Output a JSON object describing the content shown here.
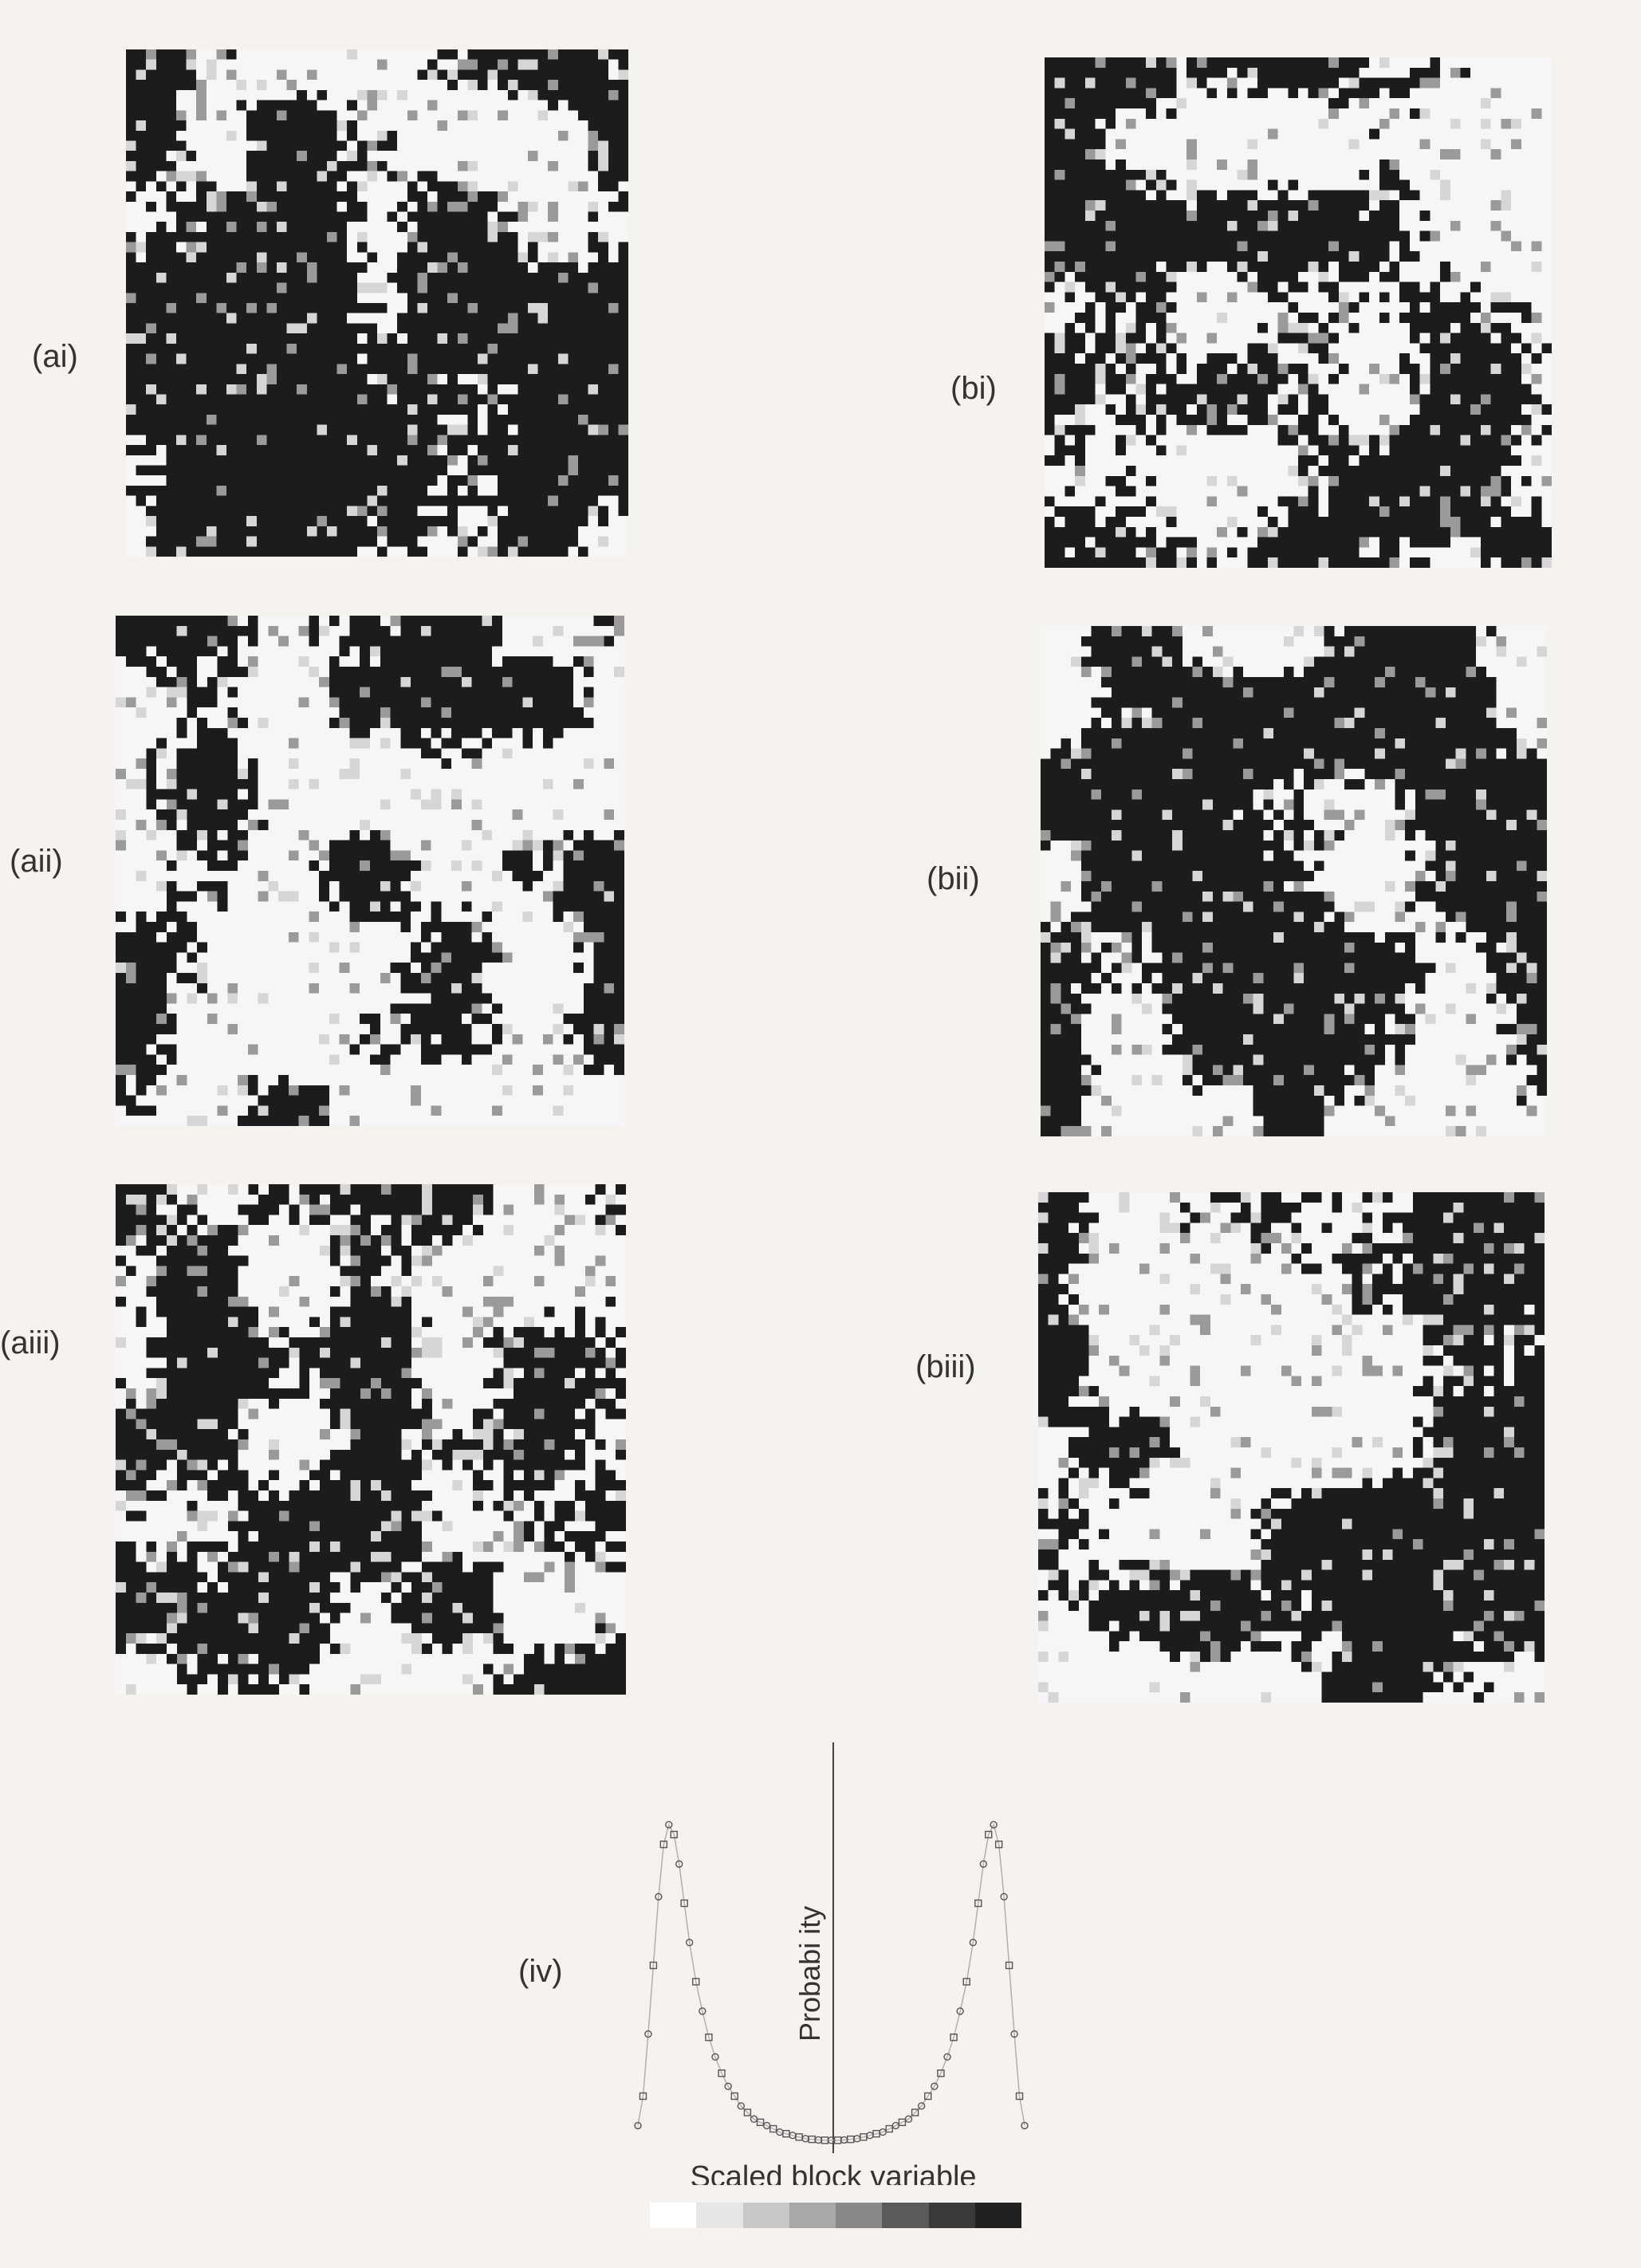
{
  "panels": [
    {
      "id": "ai",
      "label": "(ai)",
      "seed": 11,
      "threshold": 0.47
    },
    {
      "id": "bi",
      "label": "(bi)",
      "seed": 23,
      "threshold": 0.5
    },
    {
      "id": "aii",
      "label": "(aii)",
      "seed": 37,
      "threshold": 0.55
    },
    {
      "id": "bii",
      "label": "(bii)",
      "seed": 41,
      "threshold": 0.52
    },
    {
      "id": "aiii",
      "label": "(aiii)",
      "seed": 53,
      "threshold": 0.54
    },
    {
      "id": "biii",
      "label": "(biii)",
      "seed": 67,
      "threshold": 0.52
    }
  ],
  "chart_data": {
    "type": "scatter",
    "label": "(iv)",
    "xlabel": "Scaled block variable",
    "ylabel": "Probabi ity",
    "xlim": [
      -1.5,
      1.5
    ],
    "ylim": [
      0,
      1.0
    ],
    "series": [
      {
        "x": [
          -1.5,
          -1.46,
          -1.42,
          -1.38,
          -1.34,
          -1.3,
          -1.26,
          -1.22,
          -1.18,
          -1.14,
          -1.1,
          -1.05,
          -1.0,
          -0.95,
          -0.9,
          -0.85,
          -0.8,
          -0.75,
          -0.7,
          -0.65,
          -0.6,
          -0.55,
          -0.5,
          -0.45,
          -0.4,
          -0.35,
          -0.3,
          -0.25,
          -0.2,
          -0.15,
          -0.1,
          -0.05,
          0.0,
          0.05,
          0.1,
          0.15,
          0.2,
          0.25,
          0.3,
          0.35,
          0.4,
          0.45,
          0.5,
          0.55,
          0.6,
          0.65,
          0.7,
          0.75,
          0.8,
          0.85,
          0.9,
          0.95,
          1.0,
          1.05,
          1.1,
          1.14,
          1.18,
          1.22,
          1.26,
          1.3,
          1.34,
          1.38,
          1.42,
          1.46,
          1.5
        ],
        "y": [
          0.06,
          0.15,
          0.34,
          0.55,
          0.76,
          0.92,
          0.98,
          0.95,
          0.86,
          0.74,
          0.62,
          0.5,
          0.41,
          0.33,
          0.27,
          0.22,
          0.18,
          0.15,
          0.12,
          0.1,
          0.08,
          0.07,
          0.06,
          0.05,
          0.04,
          0.035,
          0.03,
          0.025,
          0.02,
          0.018,
          0.016,
          0.015,
          0.015,
          0.015,
          0.016,
          0.018,
          0.02,
          0.025,
          0.03,
          0.035,
          0.04,
          0.05,
          0.06,
          0.07,
          0.08,
          0.1,
          0.12,
          0.15,
          0.18,
          0.22,
          0.27,
          0.33,
          0.41,
          0.5,
          0.62,
          0.74,
          0.86,
          0.95,
          0.98,
          0.92,
          0.76,
          0.55,
          0.34,
          0.15,
          0.06
        ]
      }
    ]
  },
  "colorbar": [
    "#ffffff",
    "#e6e6e6",
    "#c8c8c8",
    "#a8a8a8",
    "#888888",
    "#5a5a5a",
    "#3a3a3a",
    "#202020"
  ]
}
